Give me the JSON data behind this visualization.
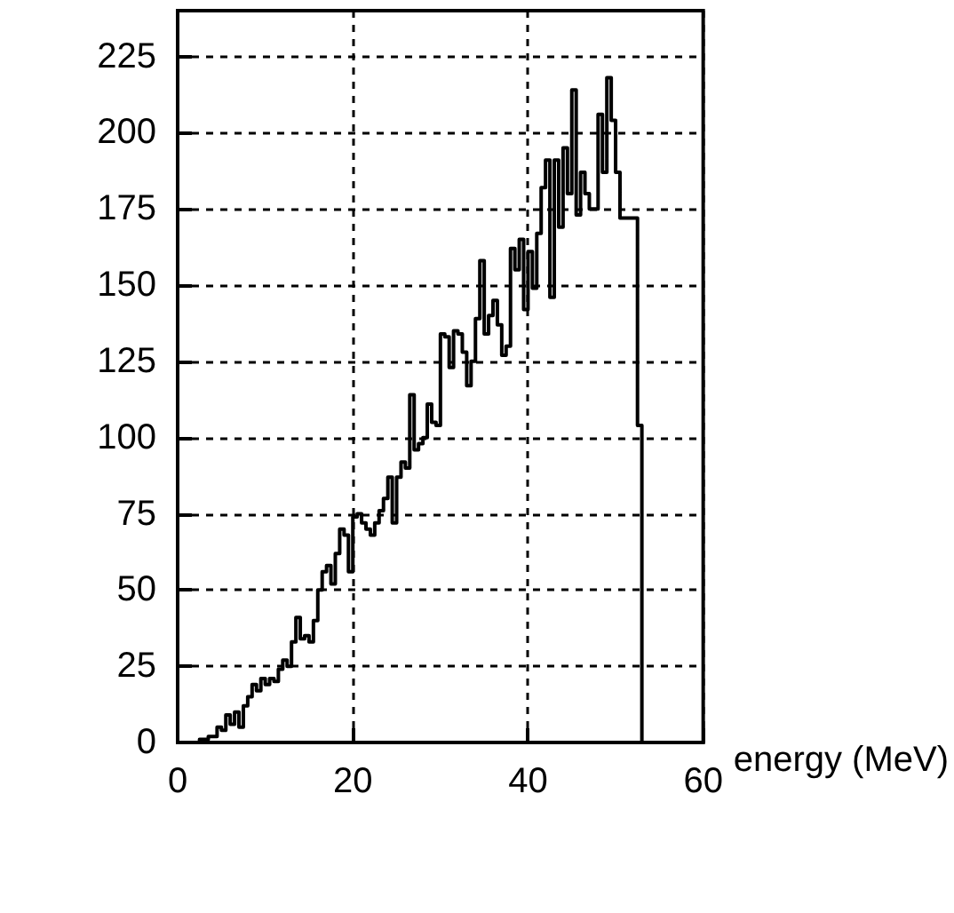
{
  "chart_data": {
    "type": "histogram",
    "xlabel": "energy (MeV)",
    "bins": [
      0,
      0.5,
      1,
      1.5,
      2,
      2.5,
      3,
      3.5,
      4,
      4.5,
      5,
      5.5,
      6,
      6.5,
      7,
      7.5,
      8,
      8.5,
      9,
      9.5,
      10,
      10.5,
      11,
      11.5,
      12,
      12.5,
      13,
      13.5,
      14,
      14.5,
      15,
      15.5,
      16,
      16.5,
      17,
      17.5,
      18,
      18.5,
      19,
      19.5,
      20,
      20.5,
      21,
      21.5,
      22,
      22.5,
      23,
      23.5,
      24,
      24.5,
      25,
      25.5,
      26,
      26.5,
      27,
      27.5,
      28,
      28.5,
      29,
      29.5,
      30,
      30.5,
      31,
      31.5,
      32,
      32.5,
      33,
      33.5,
      34,
      34.5,
      35,
      35.5,
      36,
      36.5,
      37,
      37.5,
      38,
      38.5,
      39,
      39.5,
      40,
      40.5,
      41,
      41.5,
      42,
      42.5,
      43,
      43.5,
      44,
      44.5,
      45,
      45.5,
      46,
      46.5,
      47,
      47.5,
      48,
      48.5,
      49,
      49.5,
      50,
      50.5,
      51,
      51.5,
      52,
      52.5,
      53,
      53.5,
      54,
      54.5,
      55,
      55.5,
      56,
      56.5,
      57,
      57.5,
      58,
      58.5,
      59,
      59.5,
      60
    ],
    "values": [
      0,
      0,
      0,
      0,
      0,
      1,
      1,
      2,
      2,
      5,
      4,
      9,
      6,
      10,
      5,
      12,
      15,
      19,
      17,
      21,
      19,
      21,
      20,
      24,
      27,
      25,
      33,
      41,
      34,
      35,
      33,
      40,
      50,
      56,
      58,
      52,
      62,
      70,
      68,
      56,
      74,
      75,
      72,
      70,
      68,
      72,
      76,
      80,
      87,
      72,
      87,
      92,
      90,
      114,
      96,
      98,
      100,
      111,
      105,
      104,
      134,
      133,
      123,
      135,
      134,
      128,
      117,
      125,
      139,
      158,
      134,
      140,
      145,
      137,
      127,
      130,
      162,
      155,
      165,
      142,
      161,
      149,
      167,
      182,
      191,
      146,
      191,
      169,
      195,
      180,
      214,
      173,
      187,
      180,
      175,
      175,
      206,
      187,
      218,
      204,
      187,
      172,
      172,
      172,
      172,
      104,
      0,
      0,
      0,
      0,
      0,
      0,
      0,
      0,
      0,
      0,
      0,
      0,
      0,
      0
    ],
    "color": "#000000",
    "xlim": [
      0,
      60
    ],
    "xticks": [
      0,
      20,
      40,
      60
    ],
    "ylim": [
      0,
      240
    ],
    "yticks": [
      0,
      25,
      50,
      75,
      100,
      125,
      150,
      175,
      200,
      225
    ],
    "grid": true
  }
}
